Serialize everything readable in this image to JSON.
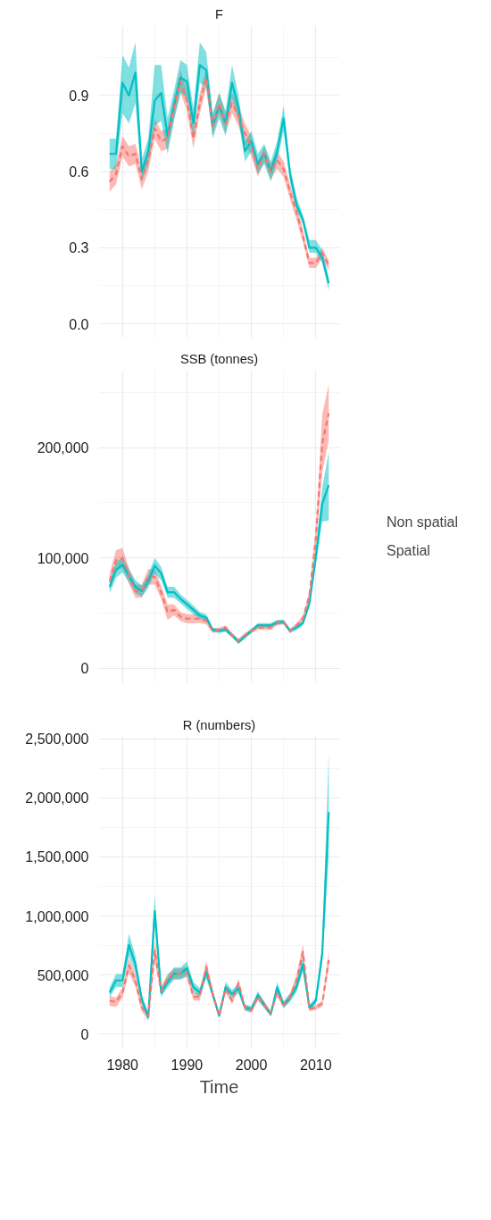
{
  "chart_data": [
    {
      "type": "line",
      "title": "F",
      "x": [
        1978,
        1979,
        1980,
        1981,
        1982,
        1983,
        1984,
        1985,
        1986,
        1987,
        1988,
        1989,
        1990,
        1991,
        1992,
        1993,
        1994,
        1995,
        1996,
        1997,
        1998,
        1999,
        2000,
        2001,
        2002,
        2003,
        2004,
        2005,
        2006,
        2007,
        2008,
        2009,
        2010,
        2011,
        2012
      ],
      "xlim": [
        1976.3,
        2013.7
      ],
      "xticks": [
        1980,
        1990,
        2000,
        2010
      ],
      "ylim": [
        -0.056,
        1.176
      ],
      "yticks": [
        {
          "value": 0,
          "label": "0.0"
        },
        0.3,
        0.6,
        0.9
      ],
      "grid": true,
      "legend": false,
      "tick_labels": "y",
      "series": [
        {
          "color": "#f8766d",
          "line_style": "dashed",
          "values": [
            0.56,
            0.59,
            0.7,
            0.66,
            0.67,
            0.57,
            0.645,
            0.77,
            0.72,
            0.73,
            0.85,
            0.955,
            0.88,
            0.73,
            0.87,
            0.97,
            0.78,
            0.87,
            0.79,
            0.87,
            0.82,
            0.75,
            0.7,
            0.61,
            0.67,
            0.6,
            0.645,
            0.61,
            0.52,
            0.44,
            0.345,
            0.24,
            0.24,
            0.28,
            0.23
          ],
          "lower": [
            0.52,
            0.55,
            0.66,
            0.62,
            0.63,
            0.53,
            0.6,
            0.73,
            0.68,
            0.69,
            0.81,
            0.91,
            0.84,
            0.69,
            0.83,
            0.93,
            0.74,
            0.83,
            0.75,
            0.83,
            0.78,
            0.71,
            0.66,
            0.58,
            0.64,
            0.57,
            0.61,
            0.58,
            0.49,
            0.41,
            0.32,
            0.22,
            0.22,
            0.26,
            0.21
          ],
          "upper": [
            0.6,
            0.63,
            0.74,
            0.7,
            0.71,
            0.61,
            0.69,
            0.81,
            0.76,
            0.77,
            0.89,
            1.0,
            0.92,
            0.77,
            0.91,
            1.01,
            0.82,
            0.91,
            0.83,
            0.91,
            0.86,
            0.79,
            0.74,
            0.64,
            0.7,
            0.63,
            0.68,
            0.64,
            0.55,
            0.47,
            0.37,
            0.26,
            0.26,
            0.3,
            0.25
          ]
        },
        {
          "color": "#00bfc4",
          "line_style": "solid",
          "values": [
            0.67,
            0.67,
            0.95,
            0.9,
            0.99,
            0.6,
            0.68,
            0.88,
            0.91,
            0.74,
            0.86,
            0.97,
            0.955,
            0.79,
            1.02,
            1.0,
            0.78,
            0.86,
            0.79,
            0.95,
            0.85,
            0.68,
            0.72,
            0.63,
            0.67,
            0.6,
            0.68,
            0.81,
            0.59,
            0.47,
            0.41,
            0.3,
            0.3,
            0.26,
            0.16
          ],
          "lower": [
            0.61,
            0.61,
            0.83,
            0.79,
            0.87,
            0.56,
            0.63,
            0.78,
            0.8,
            0.67,
            0.8,
            0.91,
            0.89,
            0.73,
            0.95,
            0.93,
            0.73,
            0.81,
            0.74,
            0.89,
            0.8,
            0.64,
            0.68,
            0.59,
            0.63,
            0.56,
            0.64,
            0.76,
            0.56,
            0.45,
            0.39,
            0.28,
            0.28,
            0.24,
            0.13
          ],
          "upper": [
            0.73,
            0.73,
            1.06,
            1.01,
            1.11,
            0.65,
            0.73,
            1.02,
            1.02,
            0.81,
            0.92,
            1.04,
            1.02,
            0.85,
            1.11,
            1.07,
            0.83,
            0.91,
            0.84,
            1.02,
            0.9,
            0.72,
            0.76,
            0.67,
            0.71,
            0.64,
            0.72,
            0.86,
            0.62,
            0.5,
            0.43,
            0.33,
            0.33,
            0.29,
            0.18
          ]
        }
      ]
    },
    {
      "type": "line",
      "title": "SSB (tonnes)",
      "x": [
        1978,
        1979,
        1980,
        1981,
        1982,
        1983,
        1984,
        1985,
        1986,
        1987,
        1988,
        1989,
        1990,
        1991,
        1992,
        1993,
        1994,
        1995,
        1996,
        1997,
        1998,
        1999,
        2000,
        2001,
        2002,
        2003,
        2004,
        2005,
        2006,
        2007,
        2008,
        2009,
        2010,
        2011,
        2012
      ],
      "xlim": [
        1976.3,
        2013.7
      ],
      "xticks": [
        1980,
        1990,
        2000,
        2010
      ],
      "ylim": [
        -13000,
        270000
      ],
      "yticks": [
        0,
        {
          "value": 100000,
          "label": "100,000"
        },
        {
          "value": 200000,
          "label": "200,000"
        }
      ],
      "grid": true,
      "legend": "right",
      "tick_labels": "y",
      "series": [
        {
          "name": "Non spatial",
          "color": "#f8766d",
          "line_style": "dashed",
          "values": [
            79000,
            98000,
            100000,
            84000,
            70000,
            70000,
            83000,
            83000,
            69000,
            51000,
            53000,
            47000,
            45000,
            45000,
            45000,
            43000,
            34000,
            35000,
            37000,
            30000,
            25000,
            30000,
            34000,
            37000,
            37000,
            37000,
            41000,
            42000,
            34000,
            39000,
            45000,
            66000,
            118000,
            204000,
            231000
          ],
          "lower": [
            72000,
            89000,
            91000,
            77000,
            64000,
            64000,
            76000,
            76000,
            63000,
            44000,
            48000,
            43000,
            41000,
            41000,
            41000,
            40000,
            32000,
            33000,
            35000,
            28000,
            23000,
            28000,
            32000,
            35000,
            35000,
            35000,
            39000,
            40000,
            32000,
            37000,
            42000,
            62000,
            110000,
            178000,
            206000
          ],
          "upper": [
            86000,
            107000,
            109000,
            91000,
            76000,
            76000,
            90000,
            90000,
            75000,
            58000,
            58000,
            51000,
            49000,
            49000,
            49000,
            46000,
            36000,
            37000,
            39000,
            32000,
            27000,
            32000,
            36000,
            39000,
            39000,
            39000,
            43000,
            44000,
            36000,
            41000,
            48000,
            70000,
            126000,
            230000,
            257000
          ]
        },
        {
          "name": "Spatial",
          "color": "#00bfc4",
          "line_style": "solid",
          "values": [
            74000,
            89000,
            94000,
            84000,
            74000,
            70000,
            79000,
            93000,
            86000,
            69000,
            69000,
            63000,
            58000,
            53000,
            48000,
            46000,
            35000,
            34000,
            35000,
            30000,
            24000,
            29000,
            34000,
            39000,
            39000,
            39000,
            42000,
            42000,
            34000,
            37000,
            41000,
            59000,
            101000,
            149000,
            166000
          ],
          "lower": [
            68000,
            82000,
            87000,
            78000,
            68000,
            65000,
            73000,
            86000,
            80000,
            64000,
            64000,
            59000,
            54000,
            49000,
            45000,
            43000,
            33000,
            32000,
            33000,
            28000,
            22000,
            27000,
            32000,
            37000,
            37000,
            37000,
            40000,
            40000,
            32000,
            35000,
            39000,
            56000,
            94000,
            133000,
            134000
          ],
          "upper": [
            80000,
            96000,
            101000,
            90000,
            80000,
            75000,
            85000,
            100000,
            92000,
            74000,
            74000,
            67000,
            62000,
            57000,
            51000,
            49000,
            37000,
            36000,
            37000,
            32000,
            26000,
            31000,
            36000,
            41000,
            41000,
            41000,
            44000,
            44000,
            36000,
            39000,
            43000,
            62000,
            108000,
            164000,
            196000
          ]
        }
      ]
    },
    {
      "type": "line",
      "title": "R (numbers)",
      "xlabel": "Time",
      "x": [
        1978,
        1979,
        1980,
        1981,
        1982,
        1983,
        1984,
        1985,
        1986,
        1987,
        1988,
        1989,
        1990,
        1991,
        1992,
        1993,
        1994,
        1995,
        1996,
        1997,
        1998,
        1999,
        2000,
        2001,
        2002,
        2003,
        2004,
        2005,
        2006,
        2007,
        2008,
        2009,
        2010,
        2011,
        2012
      ],
      "xlim": [
        1976.3,
        2013.7
      ],
      "xticks": [
        1980,
        1990,
        2000,
        2010
      ],
      "ylim": [
        -125000,
        2520000
      ],
      "yticks": [
        0,
        {
          "value": 500000,
          "label": "500,000"
        },
        {
          "value": 1000000,
          "label": "1,000,000"
        },
        {
          "value": 1500000,
          "label": "1,500,000"
        },
        {
          "value": 2000000,
          "label": "2,000,000"
        },
        {
          "value": 2500000,
          "label": "2,500,000"
        }
      ],
      "grid": true,
      "legend": false,
      "series": [
        {
          "color": "#f8766d",
          "line_style": "dashed",
          "values": [
            283000,
            271000,
            352000,
            581000,
            455000,
            225000,
            156000,
            708000,
            363000,
            466000,
            512000,
            512000,
            524000,
            317000,
            317000,
            570000,
            340000,
            156000,
            386000,
            283000,
            432000,
            225000,
            202000,
            317000,
            248000,
            179000,
            352000,
            248000,
            317000,
            455000,
            696000,
            214000,
            225000,
            260000,
            627000
          ],
          "lower": [
            240000,
            230000,
            310000,
            520000,
            400000,
            190000,
            120000,
            620000,
            330000,
            420000,
            470000,
            470000,
            480000,
            285000,
            285000,
            520000,
            310000,
            140000,
            350000,
            255000,
            395000,
            200000,
            180000,
            285000,
            220000,
            160000,
            320000,
            220000,
            285000,
            410000,
            630000,
            195000,
            205000,
            235000,
            560000
          ],
          "upper": [
            325000,
            310000,
            395000,
            645000,
            510000,
            260000,
            190000,
            800000,
            400000,
            510000,
            555000,
            555000,
            570000,
            350000,
            350000,
            620000,
            370000,
            172000,
            420000,
            310000,
            470000,
            250000,
            225000,
            350000,
            275000,
            198000,
            385000,
            275000,
            350000,
            500000,
            760000,
            235000,
            245000,
            285000,
            700000
          ]
        },
        {
          "color": "#00bfc4",
          "line_style": "solid",
          "values": [
            352000,
            455000,
            455000,
            754000,
            593000,
            294000,
            145000,
            1041000,
            352000,
            443000,
            512000,
            512000,
            558000,
            398000,
            352000,
            524000,
            340000,
            156000,
            398000,
            340000,
            386000,
            225000,
            214000,
            329000,
            248000,
            168000,
            398000,
            248000,
            306000,
            398000,
            593000,
            225000,
            283000,
            685000,
            1880000
          ],
          "lower": [
            310000,
            400000,
            400000,
            660000,
            520000,
            255000,
            110000,
            930000,
            315000,
            395000,
            460000,
            460000,
            500000,
            355000,
            315000,
            470000,
            305000,
            135000,
            360000,
            305000,
            345000,
            200000,
            190000,
            295000,
            220000,
            150000,
            355000,
            220000,
            275000,
            355000,
            530000,
            200000,
            255000,
            610000,
            1500000
          ],
          "upper": [
            395000,
            510000,
            510000,
            850000,
            665000,
            335000,
            180000,
            1180000,
            390000,
            490000,
            565000,
            565000,
            615000,
            440000,
            390000,
            580000,
            375000,
            175000,
            440000,
            375000,
            425000,
            250000,
            238000,
            365000,
            275000,
            186000,
            440000,
            275000,
            340000,
            440000,
            655000,
            250000,
            312000,
            760000,
            2385000
          ]
        }
      ]
    }
  ]
}
